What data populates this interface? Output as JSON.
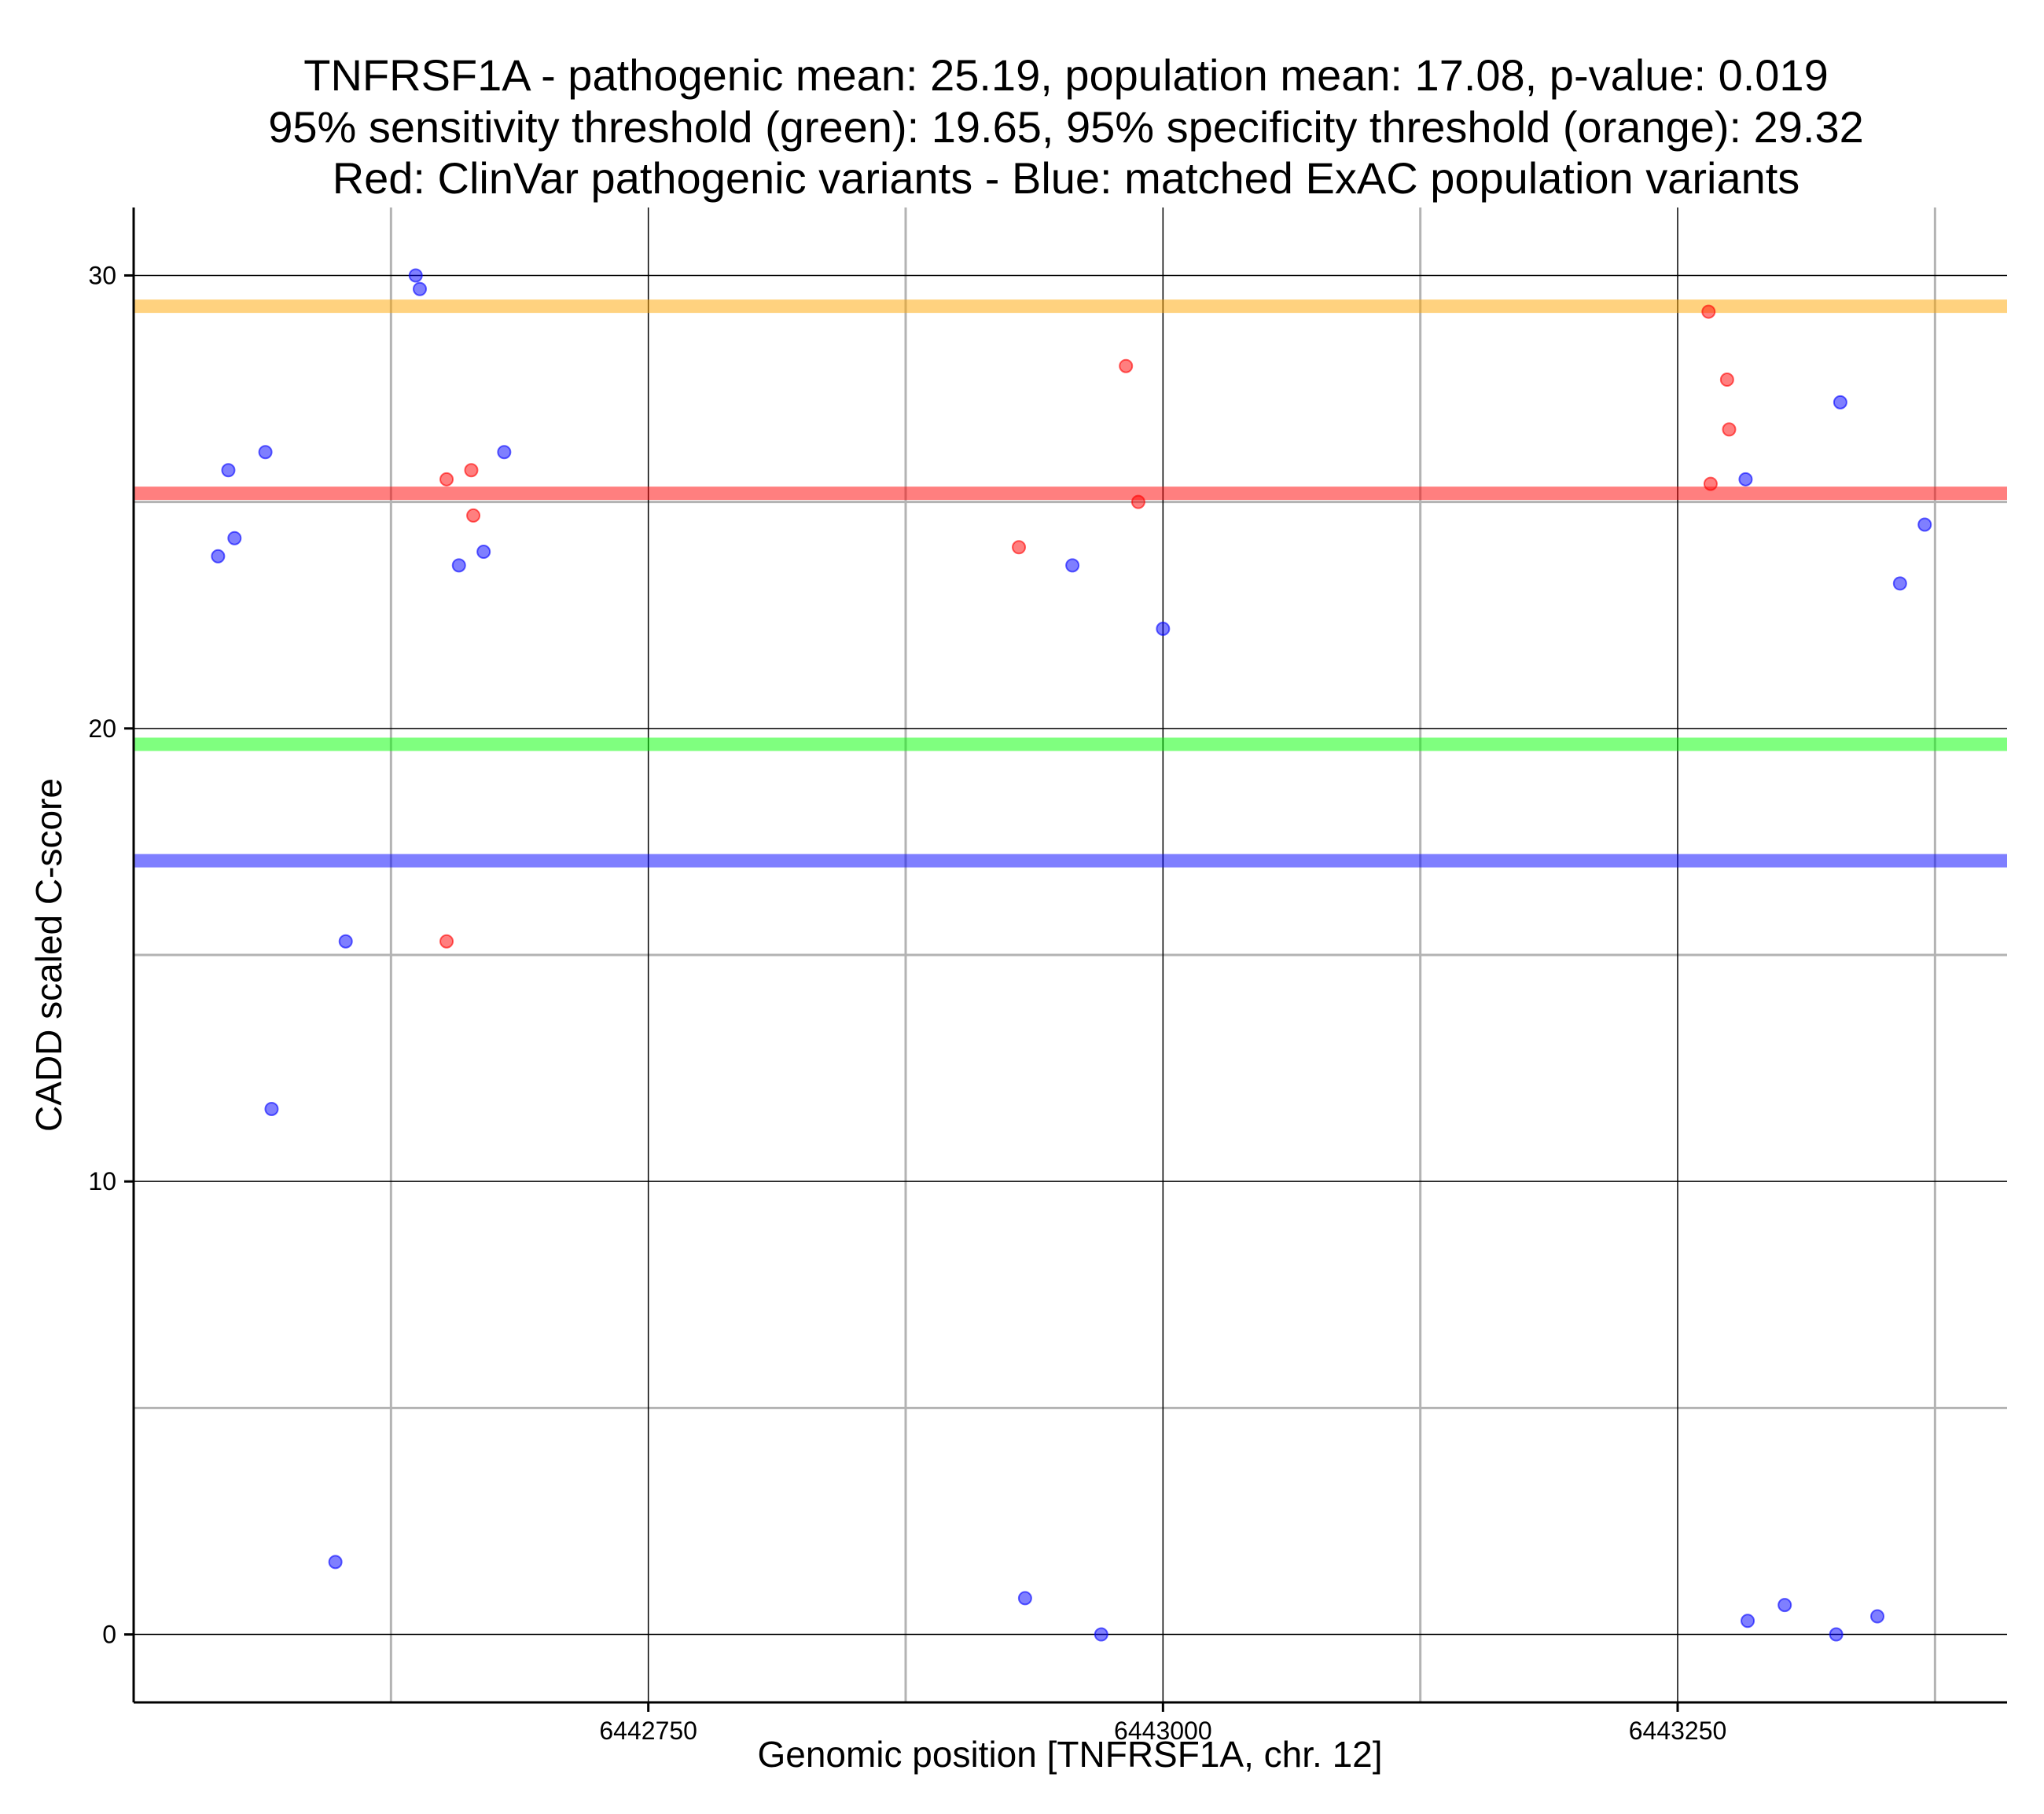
{
  "chart_data": {
    "type": "scatter",
    "title_lines": [
      "TNFRSF1A - pathogenic mean: 25.19, population mean: 17.08, p-value: 0.019",
      "95% sensitivity threshold (green): 19.65, 95% specificity threshold (orange): 29.32",
      "Red: ClinVar pathogenic variants - Blue: matched ExAC population variants"
    ],
    "xlabel": "Genomic position [TNFRSF1A, chr. 12]",
    "ylabel": "CADD scaled C-score",
    "xlim": [
      6442500,
      6443410
    ],
    "ylim": [
      -1.5,
      31.5
    ],
    "x_major_ticks": [
      6442750,
      6443000,
      6443250
    ],
    "x_tick_labels": [
      "6442750",
      "6443000",
      "6443250"
    ],
    "x_minor_grid": [
      6442625,
      6442875,
      6443125,
      6443375
    ],
    "y_major_ticks": [
      0,
      10,
      20,
      30
    ],
    "y_tick_labels": [
      "0",
      "10",
      "20",
      "30"
    ],
    "y_minor_grid": [
      5,
      15,
      25
    ],
    "hlines": [
      {
        "name": "specificity-threshold",
        "value": 29.32,
        "color": "#FFA500"
      },
      {
        "name": "pathogenic-mean",
        "value": 25.19,
        "color": "#FF0000"
      },
      {
        "name": "sensitivity-threshold",
        "value": 19.65,
        "color": "#00FF00"
      },
      {
        "name": "population-mean",
        "value": 17.08,
        "color": "#0000FF"
      }
    ],
    "series": [
      {
        "name": "ClinVar pathogenic variants",
        "color": "#FF0000",
        "points": [
          [
            6442652,
            25.5
          ],
          [
            6442652,
            15.3
          ],
          [
            6442664,
            25.7
          ],
          [
            6442665,
            24.7
          ],
          [
            6442930,
            24.0
          ],
          [
            6442982,
            28.0
          ],
          [
            6442988,
            25.0
          ],
          [
            6443265,
            29.2
          ],
          [
            6443266,
            25.4
          ],
          [
            6443274,
            27.7
          ],
          [
            6443275,
            26.6
          ]
        ]
      },
      {
        "name": "matched ExAC population variants",
        "color": "#0000FF",
        "points": [
          [
            6442541,
            23.8
          ],
          [
            6442546,
            25.7
          ],
          [
            6442549,
            24.2
          ],
          [
            6442564,
            26.1
          ],
          [
            6442567,
            11.6
          ],
          [
            6442598,
            1.6
          ],
          [
            6442603,
            15.3
          ],
          [
            6442637,
            30.0
          ],
          [
            6442639,
            29.7
          ],
          [
            6442658,
            23.6
          ],
          [
            6442670,
            23.9
          ],
          [
            6442680,
            26.1
          ],
          [
            6442933,
            0.8
          ],
          [
            6442956,
            23.6
          ],
          [
            6442970,
            0.0
          ],
          [
            6443000,
            22.2
          ],
          [
            6443283,
            25.5
          ],
          [
            6443284,
            0.3
          ],
          [
            6443302,
            0.65
          ],
          [
            6443329,
            27.2
          ],
          [
            6443327,
            0.0
          ],
          [
            6443347,
            0.4
          ],
          [
            6443358,
            23.2
          ],
          [
            6443370,
            24.5
          ]
        ]
      }
    ]
  }
}
